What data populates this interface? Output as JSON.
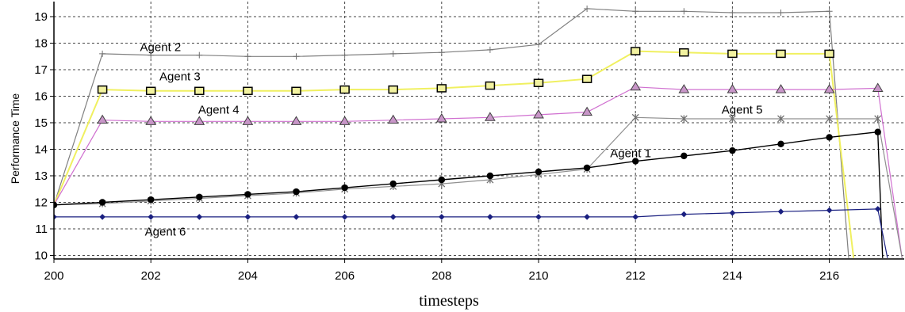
{
  "chart_data": {
    "type": "line",
    "xlabel": "timesteps",
    "ylabel": "Performance Time",
    "xlim": [
      200,
      217.75
    ],
    "ylim": [
      9.87,
      19.5
    ],
    "xticks": [
      200,
      202,
      204,
      206,
      208,
      210,
      212,
      214,
      216
    ],
    "yticks": [
      10,
      11,
      12,
      13,
      14,
      15,
      16,
      17,
      18,
      19
    ],
    "grid": true,
    "legend": "none",
    "series": [
      {
        "name": "Agent 2",
        "color": "#808080",
        "marker": "plus",
        "label": {
          "x": 202.2,
          "y": 17.85
        },
        "points": [
          [
            200,
            11.9
          ],
          [
            201,
            17.6
          ],
          [
            202,
            17.55
          ],
          [
            203,
            17.55
          ],
          [
            204,
            17.5
          ],
          [
            205,
            17.5
          ],
          [
            206,
            17.55
          ],
          [
            207,
            17.6
          ],
          [
            208,
            17.65
          ],
          [
            209,
            17.75
          ],
          [
            210,
            17.95
          ],
          [
            211,
            19.3
          ],
          [
            212,
            19.2
          ],
          [
            213,
            19.2
          ],
          [
            214,
            19.15
          ],
          [
            215,
            19.15
          ],
          [
            216,
            19.2
          ],
          [
            216.4,
            9.9
          ]
        ]
      },
      {
        "name": "Agent 3",
        "color": "#f0f060",
        "marker": "square",
        "label": {
          "x": 202.6,
          "y": 16.75
        },
        "points": [
          [
            200,
            11.9
          ],
          [
            201,
            16.25
          ],
          [
            202,
            16.2
          ],
          [
            203,
            16.2
          ],
          [
            204,
            16.2
          ],
          [
            205,
            16.2
          ],
          [
            206,
            16.25
          ],
          [
            207,
            16.25
          ],
          [
            208,
            16.3
          ],
          [
            209,
            16.4
          ],
          [
            210,
            16.5
          ],
          [
            211,
            16.65
          ],
          [
            212,
            17.7
          ],
          [
            213,
            17.65
          ],
          [
            214,
            17.6
          ],
          [
            215,
            17.6
          ],
          [
            216,
            17.6
          ],
          [
            216.5,
            9.9
          ]
        ]
      },
      {
        "name": "Agent 4",
        "color": "#d070d0",
        "marker": "triangle",
        "label": {
          "x": 203.4,
          "y": 15.5
        },
        "points": [
          [
            200,
            11.9
          ],
          [
            201,
            15.1
          ],
          [
            202,
            15.05
          ],
          [
            203,
            15.05
          ],
          [
            204,
            15.05
          ],
          [
            205,
            15.05
          ],
          [
            206,
            15.05
          ],
          [
            207,
            15.1
          ],
          [
            208,
            15.15
          ],
          [
            209,
            15.2
          ],
          [
            210,
            15.3
          ],
          [
            211,
            15.4
          ],
          [
            212,
            16.35
          ],
          [
            213,
            16.25
          ],
          [
            214,
            16.25
          ],
          [
            215,
            16.25
          ],
          [
            216,
            16.25
          ],
          [
            217,
            16.3
          ],
          [
            217.5,
            9.9
          ]
        ]
      },
      {
        "name": "Agent 5",
        "color": "#909090",
        "marker": "star",
        "label": {
          "x": 214.2,
          "y": 15.5
        },
        "points": [
          [
            200,
            11.9
          ],
          [
            201,
            11.95
          ],
          [
            202,
            12.05
          ],
          [
            203,
            12.15
          ],
          [
            204,
            12.25
          ],
          [
            205,
            12.35
          ],
          [
            206,
            12.5
          ],
          [
            207,
            12.6
          ],
          [
            208,
            12.7
          ],
          [
            209,
            12.85
          ],
          [
            210,
            13.05
          ],
          [
            211,
            13.25
          ],
          [
            212,
            15.2
          ],
          [
            213,
            15.15
          ],
          [
            214,
            15.15
          ],
          [
            215,
            15.15
          ],
          [
            216,
            15.15
          ],
          [
            217,
            15.15
          ],
          [
            217.5,
            9.9
          ]
        ]
      },
      {
        "name": "Agent 1",
        "color": "#000000",
        "marker": "circle",
        "label": {
          "x": 211.9,
          "y": 13.85
        },
        "points": [
          [
            200,
            11.9
          ],
          [
            201,
            12.0
          ],
          [
            202,
            12.1
          ],
          [
            203,
            12.2
          ],
          [
            204,
            12.3
          ],
          [
            205,
            12.4
          ],
          [
            206,
            12.55
          ],
          [
            207,
            12.7
          ],
          [
            208,
            12.85
          ],
          [
            209,
            13.0
          ],
          [
            210,
            13.15
          ],
          [
            211,
            13.3
          ],
          [
            212,
            13.55
          ],
          [
            213,
            13.75
          ],
          [
            214,
            13.95
          ],
          [
            215,
            14.2
          ],
          [
            216,
            14.45
          ],
          [
            217,
            14.65
          ],
          [
            217.1,
            9.9
          ]
        ]
      },
      {
        "name": "Agent 6",
        "color": "#1a2080",
        "marker": "diamond",
        "label": {
          "x": 202.3,
          "y": 10.9
        },
        "points": [
          [
            200,
            11.45
          ],
          [
            201,
            11.45
          ],
          [
            202,
            11.45
          ],
          [
            203,
            11.45
          ],
          [
            204,
            11.45
          ],
          [
            205,
            11.45
          ],
          [
            206,
            11.45
          ],
          [
            207,
            11.45
          ],
          [
            208,
            11.45
          ],
          [
            209,
            11.45
          ],
          [
            210,
            11.45
          ],
          [
            211,
            11.45
          ],
          [
            212,
            11.45
          ],
          [
            213,
            11.55
          ],
          [
            214,
            11.6
          ],
          [
            215,
            11.65
          ],
          [
            216,
            11.7
          ],
          [
            217,
            11.75
          ],
          [
            217.2,
            9.9
          ]
        ]
      }
    ]
  }
}
